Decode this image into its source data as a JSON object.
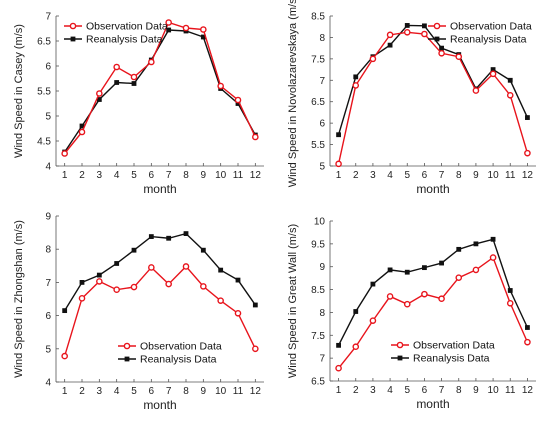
{
  "colors": {
    "observation": "#e8141c",
    "reanalysis": "#111111",
    "axis": "#555555"
  },
  "chart_data": [
    {
      "type": "line",
      "x": [
        1,
        2,
        3,
        4,
        5,
        6,
        7,
        8,
        9,
        10,
        11,
        12
      ],
      "xticks": [
        "1",
        "2",
        "3",
        "4",
        "5",
        "6",
        "7",
        "8",
        "9",
        "10",
        "11",
        "12"
      ],
      "xlabel": "month",
      "ylabel": "Wind Speed in Casey (m/s)",
      "ylim": [
        4,
        7
      ],
      "yticks": [
        4,
        4.5,
        5,
        5.5,
        6,
        6.5,
        7
      ],
      "legend": "top-left",
      "series": [
        {
          "name": "Observation Data",
          "marker": "circle",
          "values": [
            4.25,
            4.68,
            5.45,
            5.98,
            5.78,
            6.08,
            6.87,
            6.76,
            6.73,
            5.6,
            5.32,
            4.58
          ]
        },
        {
          "name": "Reanalysis Data",
          "marker": "square",
          "values": [
            4.28,
            4.8,
            5.33,
            5.67,
            5.65,
            6.12,
            6.72,
            6.7,
            6.58,
            5.55,
            5.25,
            4.62
          ]
        }
      ]
    },
    {
      "type": "line",
      "x": [
        1,
        2,
        3,
        4,
        5,
        6,
        7,
        8,
        9,
        10,
        11,
        12
      ],
      "xticks": [
        "1",
        "2",
        "3",
        "4",
        "5",
        "6",
        "7",
        "8",
        "9",
        "10",
        "11",
        "12"
      ],
      "xlabel": "month",
      "ylabel": "Wind Speed in Novolazarevskaya (m/s)",
      "ylim": [
        5,
        8.5
      ],
      "yticks": [
        5,
        5.5,
        6,
        6.5,
        7,
        7.5,
        8,
        8.5
      ],
      "legend": "top-right",
      "series": [
        {
          "name": "Observation Data",
          "marker": "circle",
          "values": [
            5.05,
            6.88,
            7.5,
            8.06,
            8.12,
            8.08,
            7.63,
            7.55,
            6.76,
            7.15,
            6.65,
            5.3
          ]
        },
        {
          "name": "Reanalysis Data",
          "marker": "square",
          "values": [
            5.73,
            7.08,
            7.55,
            7.82,
            8.28,
            8.27,
            7.75,
            7.6,
            6.8,
            7.25,
            7.0,
            6.13
          ]
        }
      ]
    },
    {
      "type": "line",
      "x": [
        1,
        2,
        3,
        4,
        5,
        6,
        7,
        8,
        9,
        10,
        11,
        12
      ],
      "xticks": [
        "1",
        "2",
        "3",
        "4",
        "5",
        "6",
        "7",
        "8",
        "9",
        "10",
        "11",
        "12"
      ],
      "xlabel": "month",
      "ylabel": "Wind Speed in Zhongshan (m/s)",
      "ylim": [
        4,
        9
      ],
      "yticks": [
        4,
        5,
        6,
        7,
        8,
        9
      ],
      "legend": "bottom-center",
      "series": [
        {
          "name": "Observation Data",
          "marker": "circle",
          "values": [
            4.78,
            6.52,
            7.03,
            6.78,
            6.86,
            7.45,
            6.95,
            7.48,
            6.88,
            6.45,
            6.07,
            5.0
          ]
        },
        {
          "name": "Reanalysis Data",
          "marker": "square",
          "values": [
            6.15,
            7.0,
            7.22,
            7.57,
            7.97,
            8.38,
            8.33,
            8.47,
            7.97,
            7.37,
            7.07,
            6.32
          ]
        }
      ]
    },
    {
      "type": "line",
      "x": [
        1,
        2,
        3,
        4,
        5,
        6,
        7,
        8,
        9,
        10,
        11,
        12
      ],
      "xticks": [
        "1",
        "2",
        "3",
        "4",
        "5",
        "6",
        "7",
        "8",
        "9",
        "10",
        "11",
        "12"
      ],
      "xlabel": "month",
      "ylabel": "Wind Speed in Great Wall (m/s)",
      "ylim": [
        6.5,
        10
      ],
      "yticks": [
        6.5,
        7,
        7.5,
        8,
        8.5,
        9,
        9.5,
        10
      ],
      "legend": "bottom-center",
      "series": [
        {
          "name": "Observation Data",
          "marker": "circle",
          "values": [
            6.78,
            7.25,
            7.82,
            8.35,
            8.18,
            8.4,
            8.3,
            8.76,
            8.93,
            9.2,
            8.2,
            7.35
          ]
        },
        {
          "name": "Reanalysis Data",
          "marker": "square",
          "values": [
            7.28,
            8.02,
            8.62,
            8.93,
            8.88,
            8.98,
            9.08,
            9.38,
            9.5,
            9.6,
            8.48,
            7.67
          ]
        }
      ]
    }
  ]
}
